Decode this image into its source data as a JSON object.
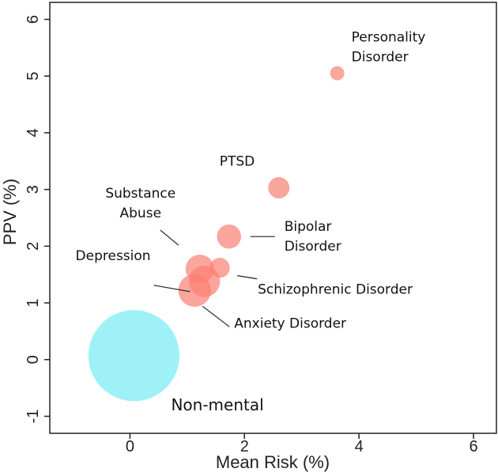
{
  "chart_data": {
    "type": "scatter",
    "subtype": "bubble",
    "title": "",
    "xlabel": "Mean Risk (%)",
    "ylabel": "PPV (%)",
    "xlim": [
      -1.4,
      6.4
    ],
    "ylim": [
      -1.3,
      6.3
    ],
    "xticks": [
      0,
      2,
      4,
      6
    ],
    "yticks": [
      -1,
      0,
      1,
      2,
      3,
      4,
      5,
      6
    ],
    "grid": false,
    "colors": {
      "mental": "#FA8072",
      "non_mental": "#8EEFF7",
      "axis": "#222222"
    },
    "points": [
      {
        "name": "Personality Disorder",
        "label_lines": [
          "Personality",
          "Disorder"
        ],
        "x": 3.62,
        "y": 5.05,
        "size": 1.0,
        "group": "mental"
      },
      {
        "name": "PTSD",
        "label_lines": [
          "PTSD"
        ],
        "x": 2.6,
        "y": 3.03,
        "size": 1.5,
        "group": "mental"
      },
      {
        "name": "Bipolar Disorder",
        "label_lines": [
          "Bipolar",
          "Disorder"
        ],
        "x": 1.73,
        "y": 2.17,
        "size": 1.7,
        "group": "mental"
      },
      {
        "name": "Schizophrenic Disorder",
        "label_lines": [
          "Schizophrenic Disorder"
        ],
        "x": 1.57,
        "y": 1.62,
        "size": 1.4,
        "group": "mental"
      },
      {
        "name": "Substance Abuse",
        "label_lines": [
          "Substance",
          "Abuse"
        ],
        "x": 1.22,
        "y": 1.6,
        "size": 2.0,
        "group": "mental"
      },
      {
        "name": "Depression",
        "label_lines": [
          "Depression"
        ],
        "x": 1.3,
        "y": 1.38,
        "size": 2.2,
        "group": "mental"
      },
      {
        "name": "Anxiety Disorder",
        "label_lines": [
          "Anxiety Disorder"
        ],
        "x": 1.13,
        "y": 1.22,
        "size": 2.3,
        "group": "mental"
      },
      {
        "name": "Non-mental",
        "label_lines": [
          "Non-mental"
        ],
        "x": 0.07,
        "y": 0.07,
        "size": 6.4,
        "group": "non_mental"
      }
    ]
  }
}
